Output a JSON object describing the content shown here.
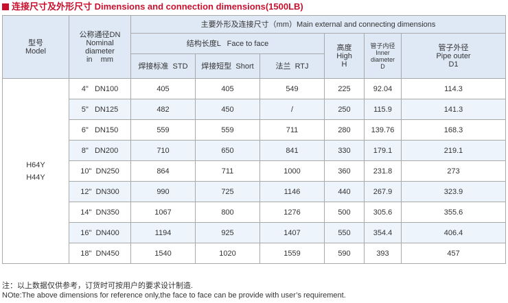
{
  "title": "连接尺寸及外形尺寸 Dimensions and connection dimensions(1500LB)",
  "header": {
    "model_cn": "型号",
    "model_en": "Model",
    "dn_cn": "公称通径DN",
    "dn_en1": "Nominal",
    "dn_en2": "diameter",
    "dn_en3": "in    mm",
    "main_dims": "主要外形及连接尺寸（mm）Main external and connecting dimensions",
    "face_to_face": "结构长度L   Face to face",
    "height_cn": "高度",
    "height_en": "High",
    "height_sym": "H",
    "inner_cn": "管子内径",
    "inner_en": "Inner diameter",
    "inner_sym": "D",
    "outer_cn": "管子外径",
    "outer_en": "Pipe outer",
    "outer_sym": "D1",
    "std": "焊接标准  STD",
    "short": "焊接短型  Short",
    "rtj": "法兰  RTJ"
  },
  "models": [
    "H64Y",
    "H44Y"
  ],
  "rows": [
    {
      "size": "4\"   DN100",
      "std": "405",
      "short": "405",
      "rtj": "549",
      "h": "225",
      "d": "92.04",
      "d1": "114.3"
    },
    {
      "size": "5\"   DN125",
      "std": "482",
      "short": "450",
      "rtj": "/",
      "h": "250",
      "d": "115.9",
      "d1": "141.3"
    },
    {
      "size": "6\"   DN150",
      "std": "559",
      "short": "559",
      "rtj": "711",
      "h": "280",
      "d": "139.76",
      "d1": "168.3"
    },
    {
      "size": "8\"   DN200",
      "std": "710",
      "short": "650",
      "rtj": "841",
      "h": "330",
      "d": "179.1",
      "d1": "219.1"
    },
    {
      "size": "10\"  DN250",
      "std": "864",
      "short": "711",
      "rtj": "1000",
      "h": "360",
      "d": "231.8",
      "d1": "273"
    },
    {
      "size": "12\"  DN300",
      "std": "990",
      "short": "725",
      "rtj": "1146",
      "h": "440",
      "d": "267.9",
      "d1": "323.9"
    },
    {
      "size": "14\"  DN350",
      "std": "1067",
      "short": "800",
      "rtj": "1276",
      "h": "500",
      "d": "305.6",
      "d1": "355.6"
    },
    {
      "size": "16\"  DN400",
      "std": "1194",
      "short": "925",
      "rtj": "1407",
      "h": "550",
      "d": "354.4",
      "d1": "406.4"
    },
    {
      "size": "18\"  DN450",
      "std": "1540",
      "short": "1020",
      "rtj": "1559",
      "h": "590",
      "d": "393",
      "d1": "457"
    }
  ],
  "notes": {
    "cn": "注：以上数据仅供参考，订货时可按用户的要求设计制造.",
    "en": "NOte:The above dimensions for reference only,the face to face can be provide with user’s requirement."
  }
}
